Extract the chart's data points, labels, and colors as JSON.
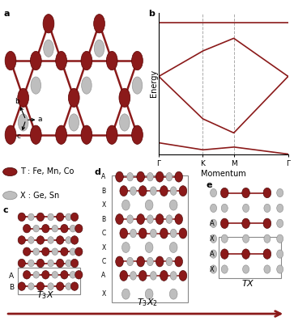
{
  "dark_red": "#8B1A1A",
  "light_gray": "#BEBEBE",
  "bg_color": "#FFFFFF",
  "legend_T": "T : Fe, Mn, Co",
  "legend_X": "X : Ge, Sn",
  "xlabel_b": "Momentum",
  "ylabel_b": "Energy",
  "xticks_b": [
    "Γ",
    "K",
    "M",
    "Γ"
  ],
  "label_c": "$T_3X$",
  "label_d": "$T_3X_2$",
  "label_e": "$TX$",
  "layers_d_labels": [
    "A",
    "B",
    "X",
    "B",
    "C",
    "X",
    "C",
    "A",
    "X"
  ],
  "layers_e_labels": [
    "A",
    "X",
    "A"
  ]
}
